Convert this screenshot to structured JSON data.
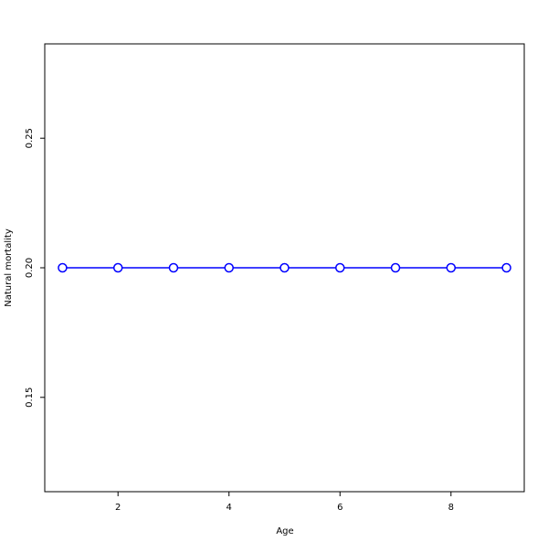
{
  "chart_data": {
    "type": "line",
    "title": "",
    "xlabel": "Age",
    "ylabel": "Natural mortality",
    "x": [
      1,
      2,
      3,
      4,
      5,
      6,
      7,
      8,
      9
    ],
    "series": [
      {
        "values": [
          0.2,
          0.2,
          0.2,
          0.2,
          0.2,
          0.2,
          0.2,
          0.2,
          0.2
        ],
        "color": "#0000ff",
        "marker": "open-circle"
      }
    ],
    "xlim": [
      0.68,
      9.32
    ],
    "ylim": [
      0.1136,
      0.2864
    ],
    "xticks": [
      2,
      4,
      6,
      8
    ],
    "xtick_labels": [
      "2",
      "4",
      "6",
      "8"
    ],
    "yticks": [
      0.15,
      0.2,
      0.25
    ],
    "ytick_labels": [
      "0.15",
      "0.20",
      "0.25"
    ],
    "grid": false
  }
}
